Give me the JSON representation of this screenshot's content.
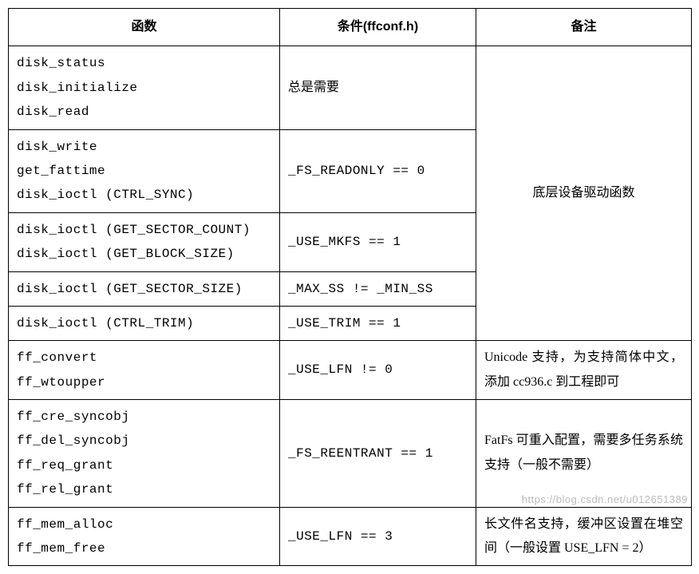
{
  "table": {
    "headers": {
      "func": "函数",
      "cond": "条件(ffconf.h)",
      "remark": "备注"
    },
    "group1_remark": "底层设备驱动函数",
    "rows": [
      {
        "funcs": [
          "disk_status",
          "disk_initialize",
          "disk_read"
        ],
        "cond": "总是需要"
      },
      {
        "funcs": [
          "disk_write",
          "get_fattime",
          "disk_ioctl (CTRL_SYNC)"
        ],
        "cond": "_FS_READONLY == 0"
      },
      {
        "funcs": [
          "disk_ioctl (GET_SECTOR_COUNT)",
          "disk_ioctl (GET_BLOCK_SIZE)"
        ],
        "cond": "_USE_MKFS == 1"
      },
      {
        "funcs": [
          "disk_ioctl (GET_SECTOR_SIZE)"
        ],
        "cond": "_MAX_SS != _MIN_SS"
      },
      {
        "funcs": [
          "disk_ioctl (CTRL_TRIM)"
        ],
        "cond": "_USE_TRIM == 1"
      },
      {
        "funcs": [
          "ff_convert",
          "ff_wtoupper"
        ],
        "cond": "_USE_LFN != 0",
        "remark": "Unicode 支持，为支持简体中文，添加 cc936.c 到工程即可"
      },
      {
        "funcs": [
          "ff_cre_syncobj",
          "ff_del_syncobj",
          "ff_req_grant",
          "ff_rel_grant"
        ],
        "cond": "_FS_REENTRANT == 1",
        "remark": "FatFs 可重入配置，需要多任务系统支持（一般不需要）"
      },
      {
        "funcs": [
          "ff_mem_alloc",
          "ff_mem_free"
        ],
        "cond": "_USE_LFN == 3",
        "remark": "长文件名支持，缓冲区设置在堆空间（一般设置 USE_LFN = 2）"
      }
    ]
  },
  "watermark": "https://blog.csdn.net/u012651389"
}
